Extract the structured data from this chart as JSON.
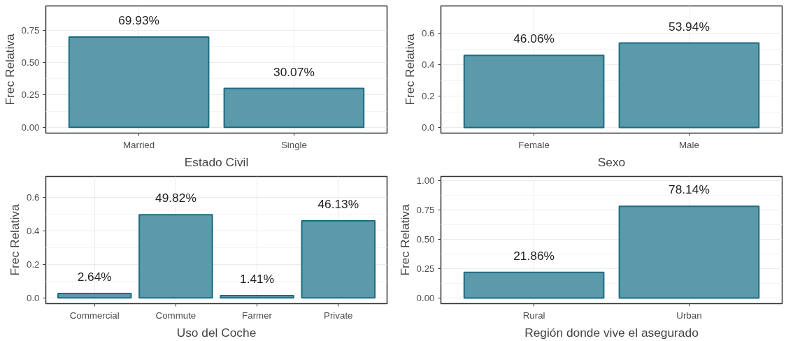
{
  "chart_data": [
    {
      "type": "bar",
      "xlabel": "Estado Civil",
      "ylabel": "Frec Relativa",
      "categories": [
        "Married",
        "Single"
      ],
      "values": [
        0.6993,
        0.3007
      ],
      "value_labels": [
        "69.93%",
        "30.07%"
      ],
      "color": "#5b9aaa",
      "ylim": [
        -0.045,
        0.94
      ],
      "yticks": [
        {
          "value": 0,
          "label": "0.00"
        },
        {
          "value": 0.25,
          "label": "0.25"
        },
        {
          "value": 0.5,
          "label": "0.50"
        },
        {
          "value": 0.75,
          "label": "0.75"
        }
      ],
      "grid": true
    },
    {
      "type": "bar",
      "xlabel": "Sexo",
      "ylabel": "Frec Relativa",
      "categories": [
        "Female",
        "Male"
      ],
      "values": [
        0.4606,
        0.5394
      ],
      "value_labels": [
        "46.06%",
        "53.94%"
      ],
      "color": "#5b9aaa",
      "ylim": [
        -0.036,
        0.776
      ],
      "yticks": [
        {
          "value": 0,
          "label": "0.0"
        },
        {
          "value": 0.2,
          "label": "0.2"
        },
        {
          "value": 0.4,
          "label": "0.4"
        },
        {
          "value": 0.6,
          "label": "0.6"
        }
      ],
      "grid": true
    },
    {
      "type": "bar",
      "xlabel": "Uso del Coche",
      "ylabel": "Frec Relativa",
      "categories": [
        "Commercial",
        "Commute",
        "Farmer",
        "Private"
      ],
      "values": [
        0.0264,
        0.4982,
        0.0141,
        0.4613
      ],
      "value_labels": [
        "2.64%",
        "49.82%",
        "1.41%",
        "46.13%"
      ],
      "color": "#5b9aaa",
      "ylim": [
        -0.034,
        0.727
      ],
      "yticks": [
        {
          "value": 0,
          "label": "0.0"
        },
        {
          "value": 0.2,
          "label": "0.2"
        },
        {
          "value": 0.4,
          "label": "0.4"
        },
        {
          "value": 0.6,
          "label": "0.6"
        }
      ],
      "grid": true
    },
    {
      "type": "bar",
      "xlabel": "Región donde vive el asegurado",
      "ylabel": "Frec Relativa",
      "categories": [
        "Rural",
        "Urban"
      ],
      "values": [
        0.2186,
        0.7814
      ],
      "value_labels": [
        "21.86%",
        "78.14%"
      ],
      "color": "#5b9aaa",
      "ylim": [
        -0.048,
        1.036
      ],
      "yticks": [
        {
          "value": 0,
          "label": "0.00"
        },
        {
          "value": 0.25,
          "label": "0.25"
        },
        {
          "value": 0.5,
          "label": "0.50"
        },
        {
          "value": 0.75,
          "label": "0.75"
        },
        {
          "value": 1,
          "label": "1.00"
        }
      ],
      "grid": true
    }
  ]
}
